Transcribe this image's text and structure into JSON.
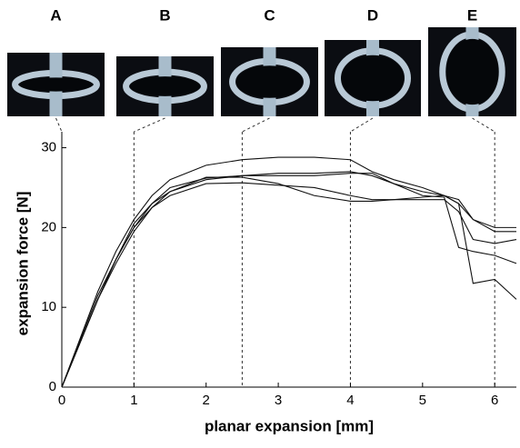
{
  "chart_data": {
    "type": "line",
    "xlabel": "planar expansion [mm]",
    "ylabel": "expansion force [N]",
    "xlim": [
      0,
      6.3
    ],
    "ylim": [
      0,
      32
    ],
    "xticks": [
      0,
      1,
      2,
      3,
      4,
      5,
      6
    ],
    "yticks": [
      0,
      10,
      20,
      30
    ],
    "x": [
      0,
      0.25,
      0.5,
      0.75,
      1,
      1.25,
      1.5,
      2,
      2.5,
      3,
      3.5,
      4,
      4.3,
      4.6,
      5,
      5.3,
      5.5,
      5.7,
      6,
      6.3
    ],
    "series": [
      {
        "color": "#111111",
        "values": [
          0,
          6,
          12,
          17,
          21,
          24,
          26,
          27.8,
          28.5,
          28.8,
          28.8,
          28.5,
          27,
          26,
          25,
          24,
          23,
          21,
          19.5,
          19.5
        ]
      },
      {
        "color": "#111111",
        "values": [
          0,
          5.5,
          11,
          16,
          20,
          23,
          24.5,
          26,
          26.5,
          26.8,
          26.8,
          27,
          26.5,
          25.5,
          24.5,
          24,
          23,
          13,
          13.5,
          11
        ]
      },
      {
        "color": "#111111",
        "values": [
          0,
          5.5,
          11,
          15.5,
          19.5,
          22.5,
          24.5,
          26.3,
          26.3,
          25.5,
          24,
          23.3,
          23.3,
          23.5,
          23.5,
          23.5,
          22,
          18.5,
          18,
          18.5
        ]
      },
      {
        "color": "#111111",
        "values": [
          0,
          5.8,
          11.5,
          16,
          20.5,
          23,
          25,
          26.2,
          26.5,
          26.5,
          26.5,
          26.8,
          26.8,
          25.5,
          24,
          23.8,
          17.5,
          17,
          16.5,
          15.5
        ]
      },
      {
        "color": "#111111",
        "values": [
          0,
          5.5,
          11,
          16,
          20,
          22.5,
          24,
          25.5,
          25.6,
          25.3,
          25,
          24,
          23.5,
          23.5,
          23.8,
          24,
          23.5,
          21,
          20,
          20
        ]
      }
    ],
    "snapshots": [
      {
        "label": "A",
        "x": 0
      },
      {
        "label": "B",
        "x": 1
      },
      {
        "label": "C",
        "x": 2.5
      },
      {
        "label": "D",
        "x": 4
      },
      {
        "label": "E",
        "x": 6
      }
    ]
  }
}
